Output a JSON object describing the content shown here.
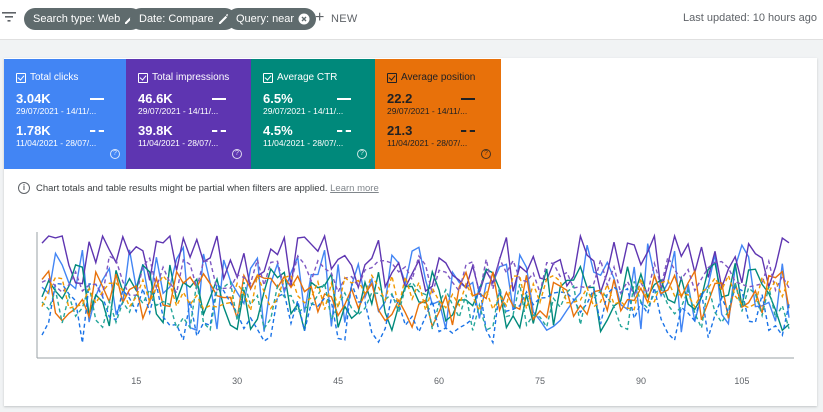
{
  "filters": {
    "chips": [
      {
        "label": "Search type: Web",
        "icon": "pencil-icon"
      },
      {
        "label": "Date: Compare",
        "icon": "pencil-icon"
      },
      {
        "label": "Query: near",
        "icon": "close-circle-icon"
      }
    ],
    "new_label": "NEW"
  },
  "last_updated": "Last updated: 10 hours ago",
  "metrics": [
    {
      "label": "Total clicks",
      "value1": "3.04K",
      "range1": "29/07/2021 - 14/11/...",
      "value2": "1.78K",
      "range2": "11/04/2021 - 28/07/...",
      "color": "#4285f4"
    },
    {
      "label": "Total impressions",
      "value1": "46.6K",
      "range1": "29/07/2021 - 14/11/...",
      "value2": "39.8K",
      "range2": "11/04/2021 - 28/07/...",
      "color": "#5e35b1"
    },
    {
      "label": "Average CTR",
      "value1": "6.5%",
      "range1": "29/07/2021 - 14/11/...",
      "value2": "4.5%",
      "range2": "11/04/2021 - 28/07/...",
      "color": "#00897b"
    },
    {
      "label": "Average position",
      "value1": "22.2",
      "range1": "29/07/2021 - 14/11/...",
      "value2": "21.3",
      "range2": "11/04/2021 - 28/07/...",
      "color": "#e8710a"
    }
  ],
  "notice": {
    "text": "Chart totals and table results might be partial when filters are applied.",
    "link": "Learn more"
  },
  "chart_data": {
    "type": "line",
    "x_ticks": [
      "15",
      "30",
      "45",
      "60",
      "75",
      "90",
      "105"
    ],
    "series_colors": [
      "#4285f4",
      "#5e35b1",
      "#00897b",
      "#e8710a",
      "#1a73e8",
      "#7e57c2",
      "#26a69a",
      "#f29900"
    ],
    "grid": false
  }
}
